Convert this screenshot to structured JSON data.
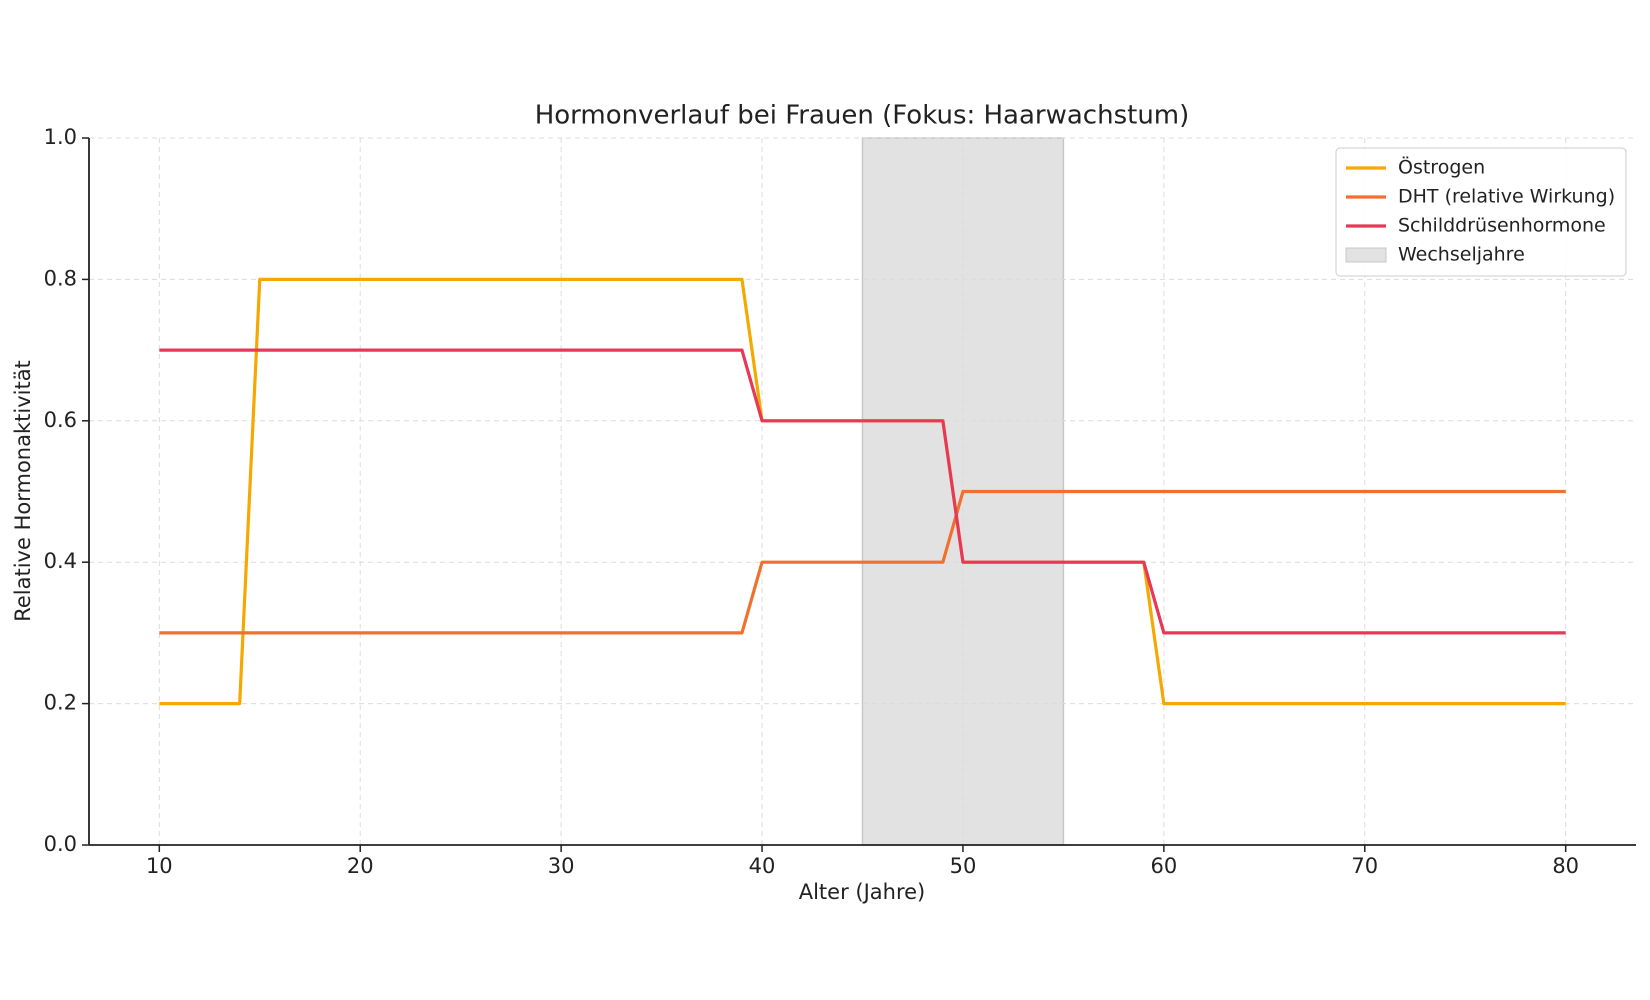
{
  "chart_data": {
    "type": "line",
    "title": "Hormonverlauf bei Frauen (Fokus: Haarwachstum)",
    "x_label": "Alter (Jahre)",
    "y_label": "Relative Hormonaktivität",
    "x": [
      10,
      14,
      15,
      39,
      40,
      49,
      50,
      59,
      60,
      80
    ],
    "series": [
      {
        "name": "Östrogen",
        "color": "#f5a800",
        "values": [
          0.2,
          0.2,
          0.8,
          0.8,
          0.6,
          0.6,
          0.4,
          0.4,
          0.2,
          0.2
        ]
      },
      {
        "name": "DHT (relative Wirkung)",
        "color": "#f07030",
        "values": [
          0.3,
          0.3,
          0.3,
          0.3,
          0.4,
          0.4,
          0.5,
          0.5,
          0.5,
          0.5
        ]
      },
      {
        "name": "Schilddrüsenhormone",
        "color": "#e83858",
        "values": [
          0.7,
          0.7,
          0.7,
          0.7,
          0.6,
          0.6,
          0.4,
          0.4,
          0.3,
          0.3
        ]
      }
    ],
    "span": {
      "name": "Wechseljahre",
      "from": 45,
      "to": 55,
      "color": "#e2e2e2"
    },
    "xlim": [
      6.5,
      83.5
    ],
    "ylim": [
      0,
      1
    ],
    "xticks": [
      10,
      20,
      30,
      40,
      50,
      60,
      70,
      80
    ],
    "yticks": [
      {
        "value": 0,
        "label": "0.0"
      },
      0.2,
      0.4,
      0.6,
      0.8,
      {
        "value": 1,
        "label": "1.0"
      }
    ],
    "grid": true,
    "legend": "upper right"
  }
}
